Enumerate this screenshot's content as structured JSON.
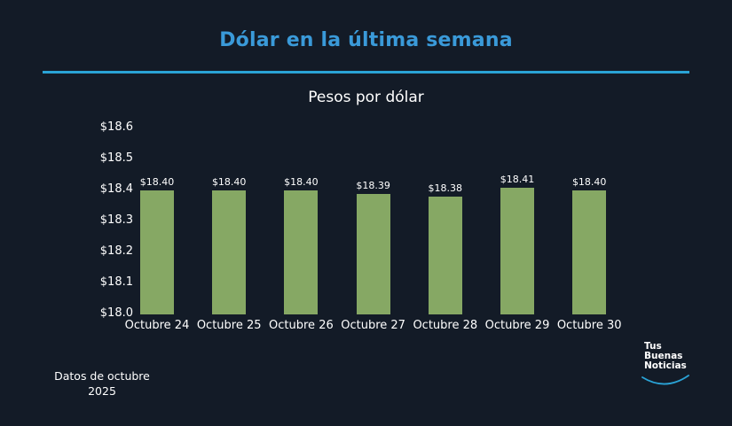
{
  "header": {
    "title": "Dólar en la última semana",
    "subtitle": "Pesos por dólar"
  },
  "footer": {
    "note_line1": "Datos de octubre",
    "note_line2": "2025"
  },
  "logo": {
    "line1": "Tus",
    "line2": "Buenas",
    "line3": "Noticias"
  },
  "colors": {
    "background": "#131b27",
    "title": "#3a9ad9",
    "rule": "#2aa3d6",
    "bar": "#86a864"
  },
  "chart_data": {
    "type": "bar",
    "title": "Dólar en la última semana",
    "subtitle": "Pesos por dólar",
    "xlabel": "",
    "ylabel": "",
    "categories": [
      "Octubre 24",
      "Octubre 25",
      "Octubre 26",
      "Octubre 27",
      "Octubre 28",
      "Octubre 29",
      "Octubre 30"
    ],
    "values": [
      18.4,
      18.4,
      18.4,
      18.39,
      18.38,
      18.41,
      18.4
    ],
    "value_labels": [
      "$18.40",
      "$18.40",
      "$18.40",
      "$18.39",
      "$18.38",
      "$18.41",
      "$18.40"
    ],
    "ylim": [
      18.0,
      18.6
    ],
    "yticks": [
      "$18.0",
      "$18.1",
      "$18.2",
      "$18.3",
      "$18.4",
      "$18.5",
      "$18.6"
    ],
    "grid": false,
    "legend": "none"
  }
}
